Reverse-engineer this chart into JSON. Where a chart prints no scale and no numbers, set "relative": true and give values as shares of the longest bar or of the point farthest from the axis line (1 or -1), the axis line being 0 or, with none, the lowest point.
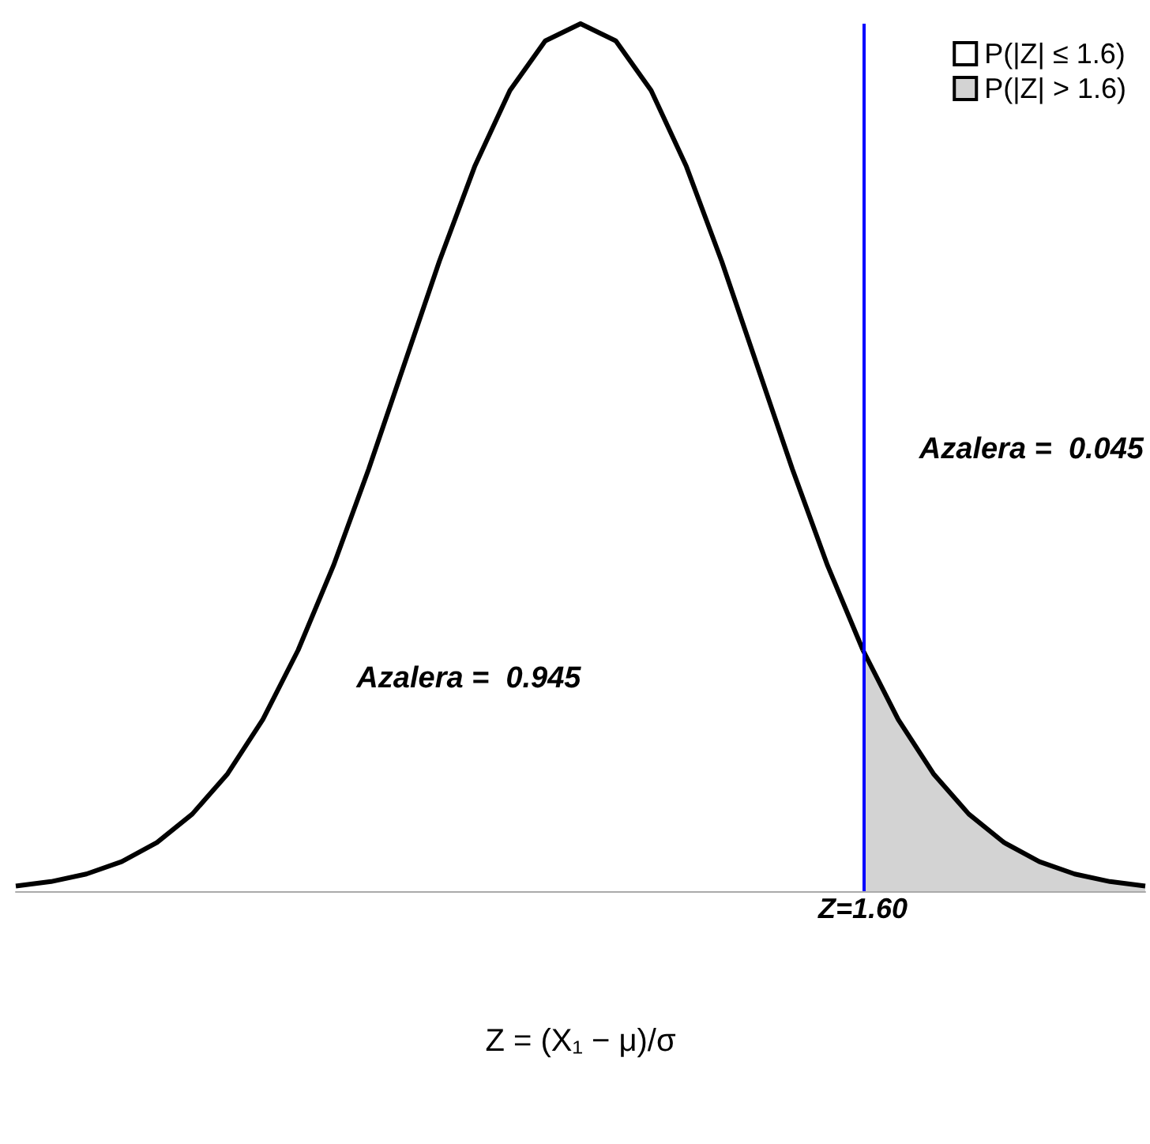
{
  "chart_data": {
    "type": "area",
    "relative": true,
    "grid": false,
    "legend": "top right",
    "xlabel": "Z = (X₁ − μ)/σ",
    "categories": [
      null,
      null,
      null,
      null,
      null,
      null,
      null,
      null,
      null,
      null,
      null,
      null,
      null,
      null,
      null,
      null,
      null,
      null,
      null,
      null,
      null,
      null,
      null,
      null,
      null,
      null,
      null,
      null,
      null,
      null,
      null,
      null,
      null
    ],
    "series": [
      {
        "name": "P(|Z| ≤ 1.6)",
        "color": "#ffffff",
        "values": [
          0.006,
          0.0111,
          0.0198,
          0.034,
          0.0561,
          0.0889,
          0.1353,
          0.1979,
          0.278,
          0.3753,
          0.4868,
          0.6065,
          0.7261,
          0.8353,
          0.9231,
          0.9802,
          1,
          0.9802,
          0.9231,
          0.8353,
          0.7261,
          0.6065,
          0.4868,
          0.3753,
          0.278,
          null,
          null,
          null,
          null,
          null,
          null,
          null,
          null
        ]
      },
      {
        "name": "P(|Z| > 1.6)",
        "color": "#d3d3d3",
        "values": [
          null,
          null,
          null,
          null,
          null,
          null,
          null,
          null,
          null,
          null,
          null,
          null,
          null,
          null,
          null,
          null,
          null,
          null,
          null,
          null,
          null,
          null,
          null,
          null,
          0.278,
          0.1979,
          0.1353,
          0.0889,
          0.0561,
          0.034,
          0.0198,
          0.0111,
          0.006
        ]
      }
    ],
    "ref_lines": [
      {
        "axis": "x",
        "label": "Z=1.60",
        "color": "#0000ff"
      }
    ],
    "annotations": [
      "Azalera =  0.945",
      "Azalera =  0.045"
    ]
  }
}
